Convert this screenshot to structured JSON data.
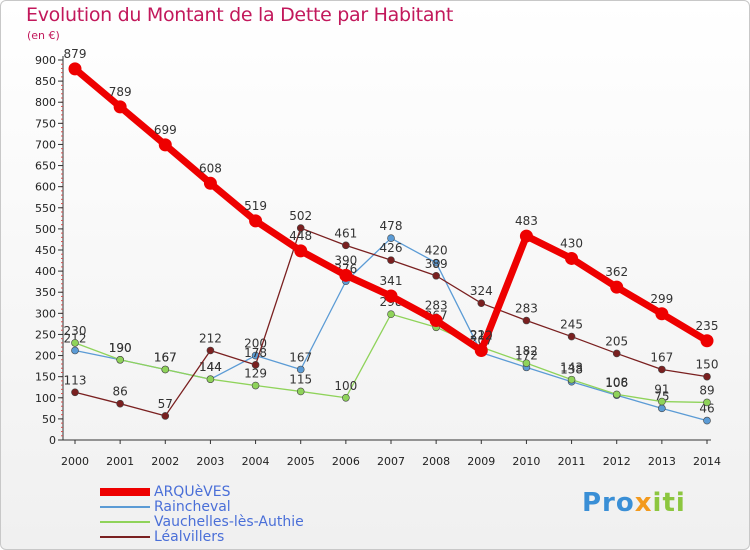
{
  "title": "Evolution du Montant de la Dette par Habitant",
  "unit": "(en €)",
  "logo": {
    "part1": "Pro",
    "part2": "x",
    "part3": "iti"
  },
  "chart_data": {
    "type": "line",
    "x": [
      "2000",
      "2001",
      "2002",
      "2003",
      "2004",
      "2005",
      "2006",
      "2007",
      "2008",
      "2009",
      "2010",
      "2011",
      "2012",
      "2013",
      "2014"
    ],
    "ylim": [
      0,
      900
    ],
    "yticks": [
      0,
      50,
      100,
      150,
      200,
      250,
      300,
      350,
      400,
      450,
      500,
      550,
      600,
      650,
      700,
      750,
      800,
      850,
      900
    ],
    "grid": false,
    "legend_position": "bottom-left",
    "series": [
      {
        "name": "ARQUèVES",
        "color": "#ee0000",
        "emphasis": true,
        "values": [
          879,
          789,
          699,
          608,
          519,
          448,
          390,
          341,
          283,
          212,
          483,
          430,
          362,
          299,
          235
        ]
      },
      {
        "name": "Raincheval",
        "color": "#5b9bd5",
        "values": [
          212,
          190,
          167,
          144,
          200,
          167,
          376,
          478,
          420,
          207,
          172,
          138,
          106,
          75,
          46
        ]
      },
      {
        "name": "Vauchelles-lès-Authie",
        "color": "#8fd35a",
        "values": [
          230,
          190,
          167,
          144,
          129,
          115,
          100,
          298,
          267,
          220,
          182,
          143,
          108,
          91,
          89
        ]
      },
      {
        "name": "Léalvillers",
        "color": "#7a2020",
        "values": [
          113,
          86,
          57,
          212,
          178,
          502,
          461,
          426,
          389,
          324,
          283,
          245,
          205,
          167,
          150
        ]
      }
    ]
  }
}
